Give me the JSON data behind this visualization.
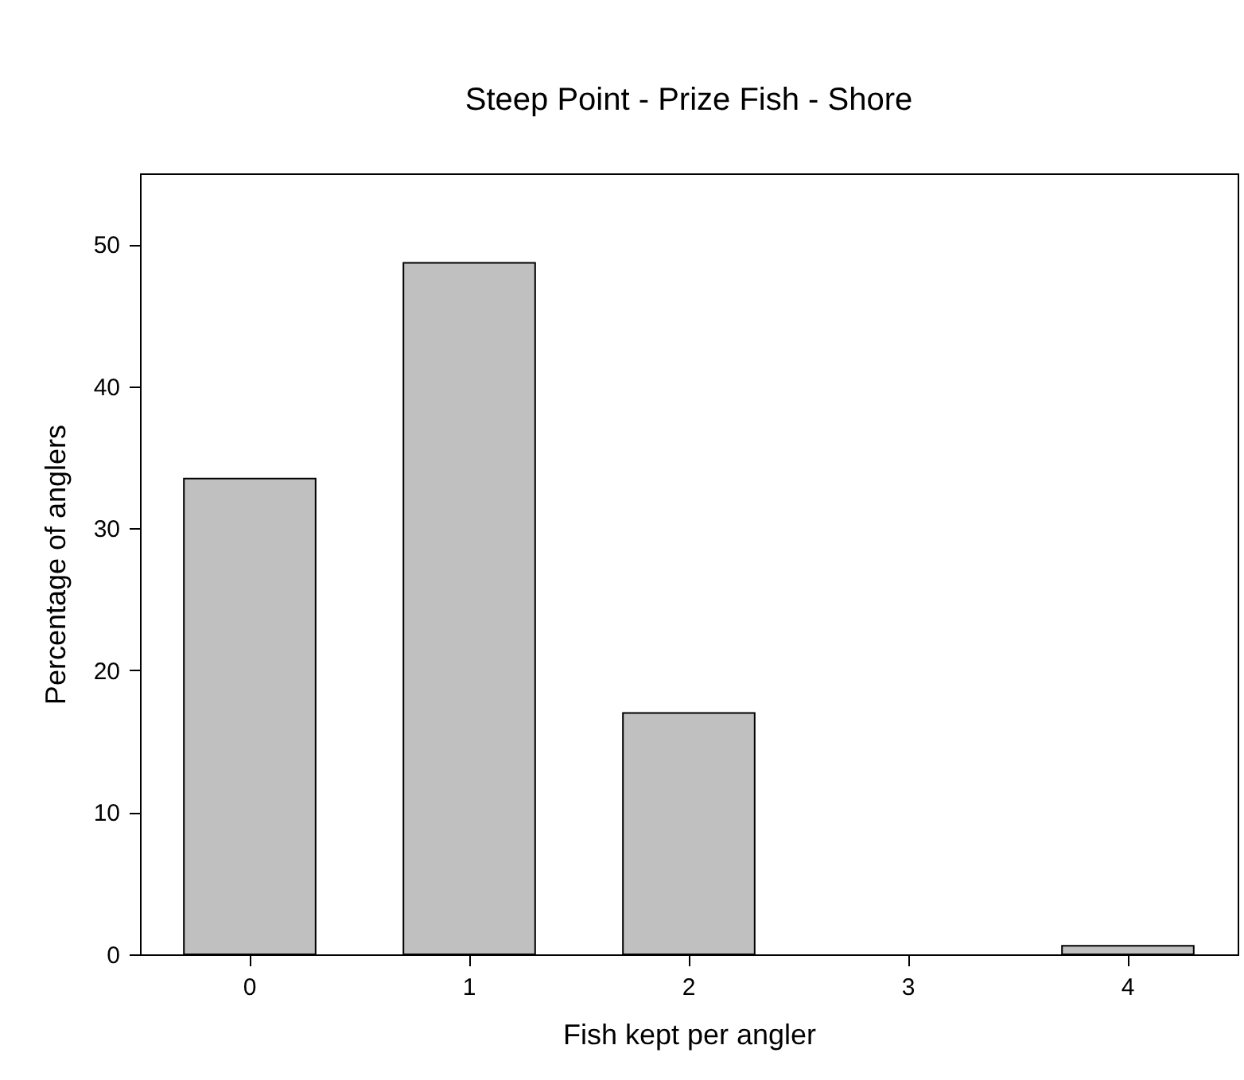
{
  "chart_data": {
    "type": "bar",
    "title": "Steep Point - Prize Fish - Shore",
    "xlabel": "Fish kept per angler",
    "ylabel": "Percentage of anglers",
    "categories": [
      "0",
      "1",
      "2",
      "3",
      "4"
    ],
    "values": [
      33.5,
      48.7,
      17.0,
      0,
      0.6
    ],
    "color": "#c0c0c0",
    "ylim": [
      0,
      55
    ],
    "yticks": [
      0,
      10,
      20,
      30,
      40,
      50
    ],
    "grid": false
  }
}
